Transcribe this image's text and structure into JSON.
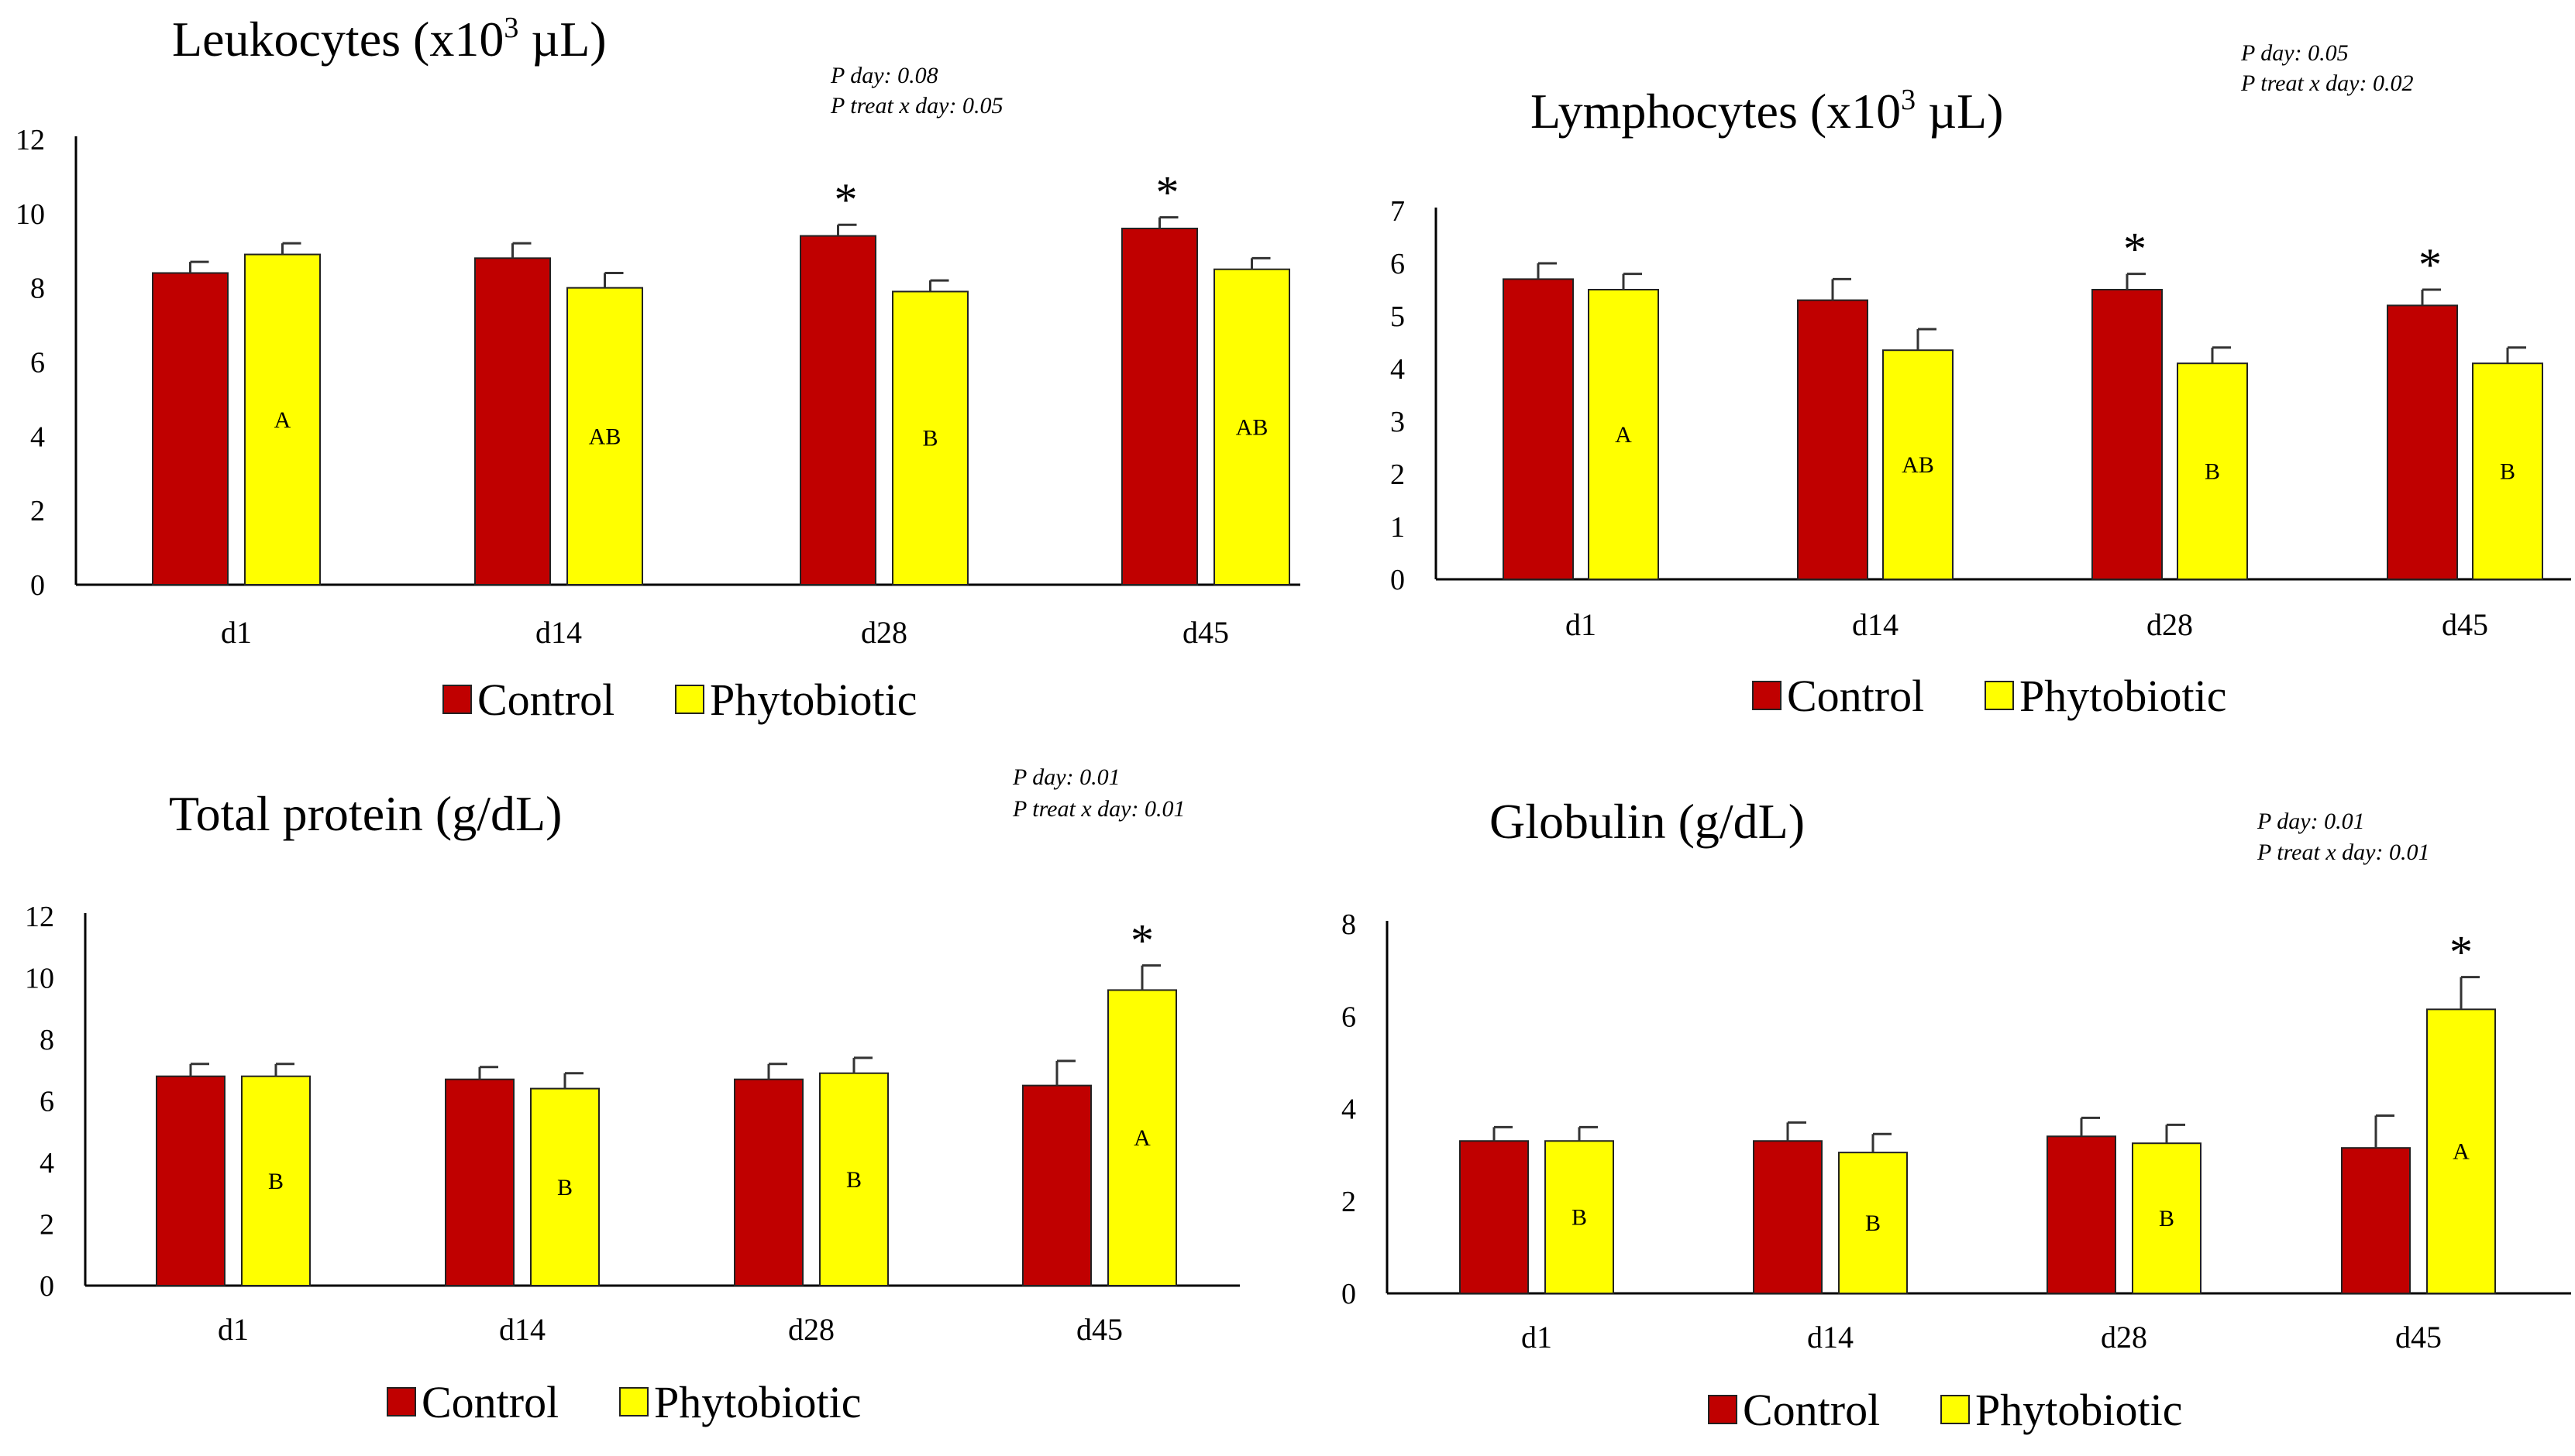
{
  "chart_data": [
    {
      "id": "leukocytes",
      "type": "bar",
      "title": "Leukocytes (x10",
      "title_superscript": "3",
      "title_suffix": " µL)",
      "categories": [
        "d1",
        "d14",
        "d28",
        "d45"
      ],
      "ylim": [
        0,
        12
      ],
      "yticks": [
        0,
        2,
        4,
        6,
        8,
        10,
        12
      ],
      "series": [
        {
          "name": "Control",
          "color": "#C00000",
          "values": [
            8.4,
            8.8,
            9.4,
            9.6
          ],
          "errors": [
            0.3,
            0.4,
            0.3,
            0.3
          ]
        },
        {
          "name": "Phytobiotic",
          "color": "#FFFF00",
          "values": [
            8.9,
            8.0,
            7.9,
            8.5
          ],
          "errors": [
            0.3,
            0.4,
            0.3,
            0.3
          ]
        }
      ],
      "letters": [
        "A",
        "AB",
        "B",
        "AB"
      ],
      "stars": [
        false,
        false,
        true,
        true
      ],
      "pvalues": [
        "P day: 0.08",
        "P treat x day: 0.05"
      ],
      "legend": [
        "Control",
        "Phytobiotic"
      ]
    },
    {
      "id": "lymphocytes",
      "type": "bar",
      "title": "Lymphocytes (x10",
      "title_superscript": "3",
      "title_suffix": " µL)",
      "categories": [
        "d1",
        "d14",
        "d28",
        "d45"
      ],
      "ylim": [
        0,
        7
      ],
      "yticks": [
        0,
        1,
        2,
        3,
        4,
        5,
        6,
        7
      ],
      "series": [
        {
          "name": "Control",
          "color": "#C00000",
          "values": [
            5.7,
            5.3,
            5.5,
            5.2
          ],
          "errors": [
            0.3,
            0.4,
            0.3,
            0.3
          ]
        },
        {
          "name": "Phytobiotic",
          "color": "#FFFF00",
          "values": [
            5.5,
            4.35,
            4.1,
            4.1
          ],
          "errors": [
            0.3,
            0.4,
            0.3,
            0.3
          ]
        }
      ],
      "letters": [
        "A",
        "AB",
        "B",
        "B"
      ],
      "stars": [
        false,
        false,
        true,
        true
      ],
      "pvalues": [
        "P day: 0.05",
        "P treat x day: 0.02"
      ],
      "legend": [
        "Control",
        "Phytobiotic"
      ]
    },
    {
      "id": "total-protein",
      "type": "bar",
      "title": "Total protein (g/dL)",
      "title_superscript": "",
      "title_suffix": "",
      "categories": [
        "d1",
        "d14",
        "d28",
        "d45"
      ],
      "ylim": [
        0,
        12
      ],
      "yticks": [
        0,
        2,
        4,
        6,
        8,
        10,
        12
      ],
      "series": [
        {
          "name": "Control",
          "color": "#C00000",
          "values": [
            6.8,
            6.7,
            6.7,
            6.5
          ],
          "errors": [
            0.4,
            0.4,
            0.5,
            0.8
          ]
        },
        {
          "name": "Phytobiotic",
          "color": "#FFFF00",
          "values": [
            6.8,
            6.4,
            6.9,
            9.6
          ],
          "errors": [
            0.4,
            0.5,
            0.5,
            0.8
          ]
        }
      ],
      "letters": [
        "B",
        "B",
        "B",
        "A"
      ],
      "stars": [
        false,
        false,
        false,
        true
      ],
      "pvalues": [
        "P day: 0.01",
        "P treat x day: 0.01"
      ],
      "legend": [
        "Control",
        "Phytobiotic"
      ]
    },
    {
      "id": "globulin",
      "type": "bar",
      "title": "Globulin (g/dL)",
      "title_superscript": "",
      "title_suffix": "",
      "categories": [
        "d1",
        "d14",
        "d28",
        "d45"
      ],
      "ylim": [
        0,
        8
      ],
      "yticks": [
        0,
        2,
        4,
        6,
        8
      ],
      "series": [
        {
          "name": "Control",
          "color": "#C00000",
          "values": [
            3.3,
            3.3,
            3.4,
            3.15
          ],
          "errors": [
            0.3,
            0.4,
            0.4,
            0.7
          ]
        },
        {
          "name": "Phytobiotic",
          "color": "#FFFF00",
          "values": [
            3.3,
            3.05,
            3.25,
            6.15
          ],
          "errors": [
            0.3,
            0.4,
            0.4,
            0.7
          ]
        }
      ],
      "letters": [
        "B",
        "B",
        "B",
        "A"
      ],
      "stars": [
        false,
        false,
        false,
        true
      ],
      "pvalues": [
        "P day: 0.01",
        "P treat x day: 0.01"
      ],
      "legend": [
        "Control",
        "Phytobiotic"
      ]
    }
  ]
}
